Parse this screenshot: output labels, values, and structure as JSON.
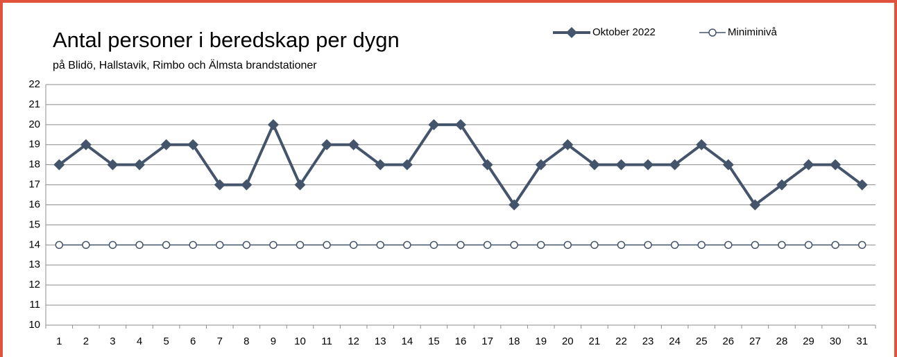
{
  "chart_data": {
    "type": "line",
    "title": "Antal personer i beredskap per dygn",
    "subtitle": "på Blidö, Hallstavik, Rimbo och Älmsta brandstationer",
    "categories": [
      1,
      2,
      3,
      4,
      5,
      6,
      7,
      8,
      9,
      10,
      11,
      12,
      13,
      14,
      15,
      16,
      17,
      18,
      19,
      20,
      21,
      22,
      23,
      24,
      25,
      26,
      27,
      28,
      29,
      30,
      31
    ],
    "series": [
      {
        "name": "Oktober 2022",
        "color": "#44546a",
        "marker": "diamond",
        "values": [
          18,
          19,
          18,
          18,
          19,
          19,
          17,
          17,
          20,
          17,
          19,
          19,
          18,
          18,
          20,
          20,
          18,
          16,
          18,
          19,
          18,
          18,
          18,
          18,
          19,
          18,
          16,
          17,
          18,
          18,
          17
        ]
      },
      {
        "name": "Miniminivå",
        "color": "#44546a",
        "marker": "circle",
        "values": [
          14,
          14,
          14,
          14,
          14,
          14,
          14,
          14,
          14,
          14,
          14,
          14,
          14,
          14,
          14,
          14,
          14,
          14,
          14,
          14,
          14,
          14,
          14,
          14,
          14,
          14,
          14,
          14,
          14,
          14,
          14
        ]
      }
    ],
    "ylim": [
      10,
      22
    ],
    "yticks": [
      10,
      11,
      12,
      13,
      14,
      15,
      16,
      17,
      18,
      19,
      20,
      21,
      22
    ],
    "grid": true,
    "legend": "top-right"
  }
}
